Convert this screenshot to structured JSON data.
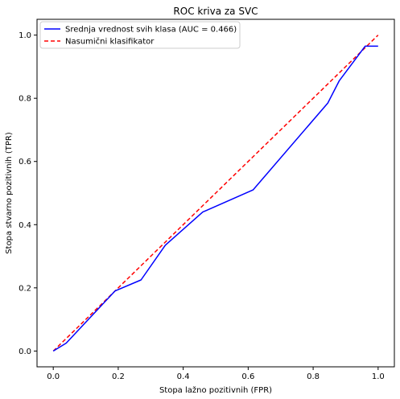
{
  "chart_data": {
    "type": "line",
    "title": "ROC kriva za SVC",
    "xlabel": "Stopa lažno pozitivnih (FPR)",
    "ylabel": "Stopa stvarno pozitivnih (TPR)",
    "xlim": [
      -0.05,
      1.05
    ],
    "ylim": [
      -0.05,
      1.05
    ],
    "xticks": [
      "0.0",
      "0.2",
      "0.4",
      "0.6",
      "0.8",
      "1.0"
    ],
    "yticks": [
      "0.0",
      "0.2",
      "0.4",
      "0.6",
      "0.8",
      "1.0"
    ],
    "legend_position": "top-left",
    "grid": false,
    "series": [
      {
        "name": "Srednja vrednost svih klasa (AUC = 0.466)",
        "color": "#0000ff",
        "style": "solid",
        "x": [
          0.0,
          0.04,
          0.19,
          0.27,
          0.345,
          0.46,
          0.615,
          0.845,
          0.88,
          0.96,
          1.0
        ],
        "y": [
          0.0,
          0.025,
          0.19,
          0.225,
          0.335,
          0.44,
          0.51,
          0.785,
          0.855,
          0.965,
          0.965
        ]
      },
      {
        "name": "Nasumični klasifikator",
        "color": "#ff0000",
        "style": "dashed",
        "x": [
          0.0,
          1.0
        ],
        "y": [
          0.0,
          1.0
        ]
      }
    ]
  }
}
